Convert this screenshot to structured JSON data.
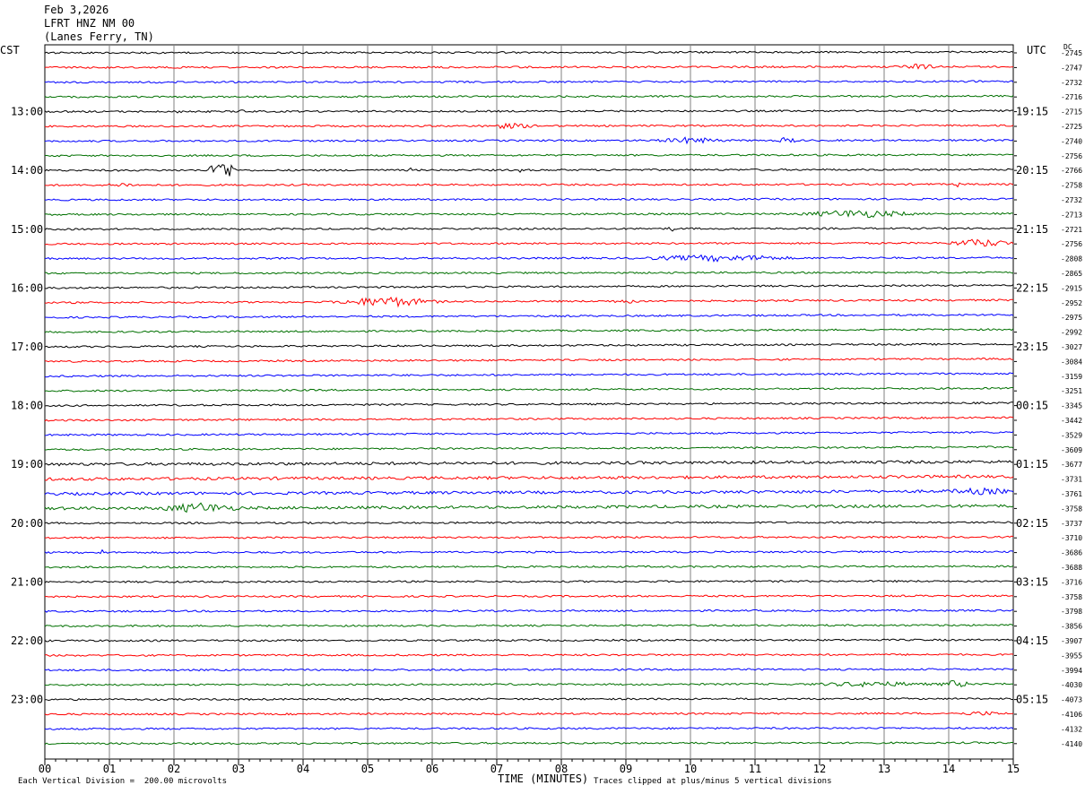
{
  "header": {
    "date": "Feb 3,2026",
    "station": "LFRT HNZ NM 00",
    "location": "(Lanes Ferry, TN)"
  },
  "left_timezone": "CST",
  "right_timezone": "UTC",
  "dc_label": "DC",
  "footer": {
    "scale_note": "Each Vertical Division =  200.00 microvolts",
    "clip_note": "Traces clipped at plus/minus 5 vertical divisions"
  },
  "colors": {
    "trace_cycle": [
      "#000000",
      "#ff0000",
      "#0000ff",
      "#007000"
    ],
    "grid": "#808080"
  },
  "chart_data": {
    "type": "line",
    "subtype": "helicorder",
    "xlabel": "TIME (MINUTES)",
    "x_ticks": [
      "00",
      "01",
      "02",
      "03",
      "04",
      "05",
      "06",
      "07",
      "08",
      "09",
      "10",
      "11",
      "12",
      "13",
      "14",
      "15"
    ],
    "xlim": [
      0,
      15
    ],
    "row_minutes": 15,
    "row_count": 48,
    "left_hour_labels": [
      "13:00",
      "14:00",
      "15:00",
      "16:00",
      "17:00",
      "18:00",
      "19:00",
      "20:00",
      "21:00",
      "22:00",
      "23:00"
    ],
    "right_hour_labels": [
      "19:15",
      "20:15",
      "21:15",
      "22:15",
      "23:15",
      "00:15",
      "01:15",
      "02:15",
      "03:15",
      "04:15",
      "05:15"
    ],
    "dc_offsets": [
      "-2745",
      "-2747",
      "-2732",
      "-2716",
      "-2715",
      "-2725",
      "-2740",
      "-2756",
      "-2766",
      "-2758",
      "-2732",
      "-2713",
      "-2721",
      "-2756",
      "-2808",
      "-2865",
      "-2915",
      "-2952",
      "-2975",
      "-2992",
      "-3027",
      "-3084",
      "-3159",
      "-3251",
      "-3345",
      "-3442",
      "-3529",
      "-3609",
      "-3677",
      "-3731",
      "-3761",
      "-3758",
      "-3737",
      "-3710",
      "-3686",
      "-3688",
      "-3716",
      "-3758",
      "-3798",
      "-3856",
      "-3907",
      "-3955",
      "-3994",
      "-4030",
      "-4073",
      "-4106",
      "-4132",
      "-4140"
    ],
    "events": [
      {
        "row": 1,
        "minute": 13.5,
        "amp": 0.4,
        "dur": 0.4
      },
      {
        "row": 4,
        "minute": 2.1,
        "amp": 1.2,
        "dur": 0.05
      },
      {
        "row": 4,
        "minute": 3.05,
        "amp": 0.5,
        "dur": 0.05
      },
      {
        "row": 5,
        "minute": 7.2,
        "amp": 0.4,
        "dur": 0.5
      },
      {
        "row": 6,
        "minute": 10.0,
        "amp": 0.5,
        "dur": 0.6
      },
      {
        "row": 6,
        "minute": 11.5,
        "amp": 0.7,
        "dur": 0.15
      },
      {
        "row": 8,
        "minute": 2.75,
        "amp": 2.2,
        "dur": 0.25
      },
      {
        "row": 8,
        "minute": 5.65,
        "amp": 0.5,
        "dur": 0.04
      },
      {
        "row": 8,
        "minute": 7.35,
        "amp": 0.6,
        "dur": 0.04
      },
      {
        "row": 9,
        "minute": 1.2,
        "amp": 0.3,
        "dur": 0.3
      },
      {
        "row": 9,
        "minute": 14.15,
        "amp": 0.5,
        "dur": 0.04
      },
      {
        "row": 11,
        "minute": 12.6,
        "amp": 0.7,
        "dur": 1.0
      },
      {
        "row": 12,
        "minute": 9.7,
        "amp": 0.5,
        "dur": 0.06
      },
      {
        "row": 13,
        "minute": 14.5,
        "amp": 0.7,
        "dur": 0.6
      },
      {
        "row": 14,
        "minute": 10.4,
        "amp": 0.5,
        "dur": 1.4
      },
      {
        "row": 14,
        "minute": 11.05,
        "amp": 0.6,
        "dur": 0.1
      },
      {
        "row": 17,
        "minute": 5.3,
        "amp": 0.9,
        "dur": 0.9
      },
      {
        "row": 17,
        "minute": 9.0,
        "amp": 0.3,
        "dur": 0.3
      },
      {
        "row": 30,
        "minute": 14.5,
        "amp": 0.4,
        "dur": 0.6
      },
      {
        "row": 31,
        "minute": 2.4,
        "amp": 0.8,
        "dur": 0.7
      },
      {
        "row": 34,
        "minute": 0.9,
        "amp": 0.6,
        "dur": 0.06
      },
      {
        "row": 43,
        "minute": 12.8,
        "amp": 0.4,
        "dur": 1.0
      },
      {
        "row": 43,
        "minute": 14.1,
        "amp": 0.6,
        "dur": 0.3
      },
      {
        "row": 45,
        "minute": 14.5,
        "amp": 0.3,
        "dur": 0.4
      }
    ]
  }
}
